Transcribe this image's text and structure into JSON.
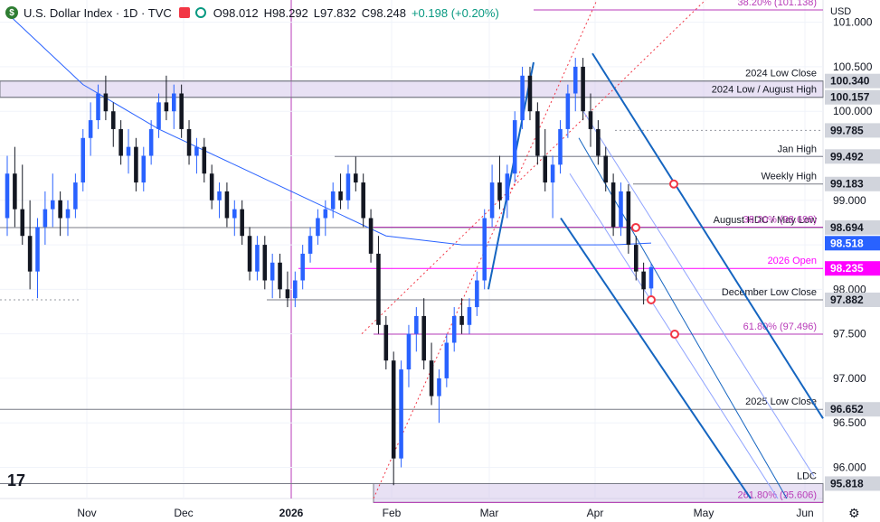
{
  "header": {
    "symbol": "U.S. Dollar Index · 1D · TVC",
    "o": "O98.012",
    "h": "H98.292",
    "l": "L97.832",
    "c": "C98.248",
    "change": "+0.198 (+0.20%)"
  },
  "currency": "USD",
  "colors": {
    "up": "#2962ff",
    "down": "#131722",
    "ma": "#2962ff",
    "channel": "#1565c0",
    "magenta": "#b83bb8",
    "pink": "#ff00ff",
    "gray_line": "#787b86",
    "red_dot": "#f23645"
  },
  "chart_data": {
    "type": "candlestick",
    "y_axis": {
      "min": 95.65,
      "max": 101.25,
      "ticks": [
        101.0,
        100.5,
        100.0,
        99.5,
        99.0,
        98.5,
        98.0,
        97.5,
        97.0,
        96.5,
        96.0
      ]
    },
    "x_axis": {
      "labels": [
        "Nov",
        "Dec",
        "2026",
        "Feb",
        "Mar",
        "Apr",
        "May",
        "Jun"
      ]
    },
    "levels": [
      {
        "value": 101.138,
        "label": "38.20% (101.138)",
        "kind": "fib"
      },
      {
        "value": 100.34,
        "label": "2024 Low Close",
        "tag": "100.340",
        "kind": "zone-top"
      },
      {
        "value": 100.157,
        "label": "2024 Low / August High",
        "tag": "100.157",
        "kind": "zone-bottom"
      },
      {
        "value": 99.785,
        "tag": "99.785",
        "kind": "dotted"
      },
      {
        "value": 99.492,
        "label": "Jan High",
        "tag": "99.492",
        "kind": "gray"
      },
      {
        "value": 99.183,
        "label": "Weekly High",
        "tag": "99.183",
        "kind": "gray"
      },
      {
        "value": 98.694,
        "label": "August HDC / May Low",
        "tag": "98.694",
        "kind": "gray"
      },
      {
        "value": 98.698,
        "label": "38.20% (98.698)",
        "kind": "fib"
      },
      {
        "value": 98.518,
        "tag": "98.518",
        "kind": "ma"
      },
      {
        "value": 98.235,
        "label": "2026 Open",
        "tag": "98.235",
        "kind": "open"
      },
      {
        "value": 97.882,
        "label": "December Low Close",
        "tag": "97.882",
        "kind": "gray"
      },
      {
        "value": 97.496,
        "label": "61.80% (97.496)",
        "kind": "fib"
      },
      {
        "value": 96.652,
        "label": "2025 Low Close",
        "tag": "96.652",
        "kind": "gray"
      },
      {
        "value": 95.818,
        "label": "LDC",
        "tag": "95.818",
        "kind": "zone-top"
      },
      {
        "value": 95.606,
        "label": "261.80% (95.606)",
        "kind": "fib"
      }
    ],
    "candles": [
      [
        98.8,
        99.5,
        98.6,
        99.3
      ],
      [
        99.3,
        99.6,
        98.7,
        98.9
      ],
      [
        98.9,
        99.4,
        98.5,
        98.6
      ],
      [
        98.6,
        99.0,
        98.0,
        98.2
      ],
      [
        98.2,
        98.8,
        97.9,
        98.7
      ],
      [
        98.7,
        99.1,
        98.5,
        98.9
      ],
      [
        98.9,
        99.3,
        98.7,
        99.0
      ],
      [
        99.0,
        99.1,
        98.6,
        98.8
      ],
      [
        98.8,
        99.0,
        98.6,
        98.9
      ],
      [
        98.9,
        99.3,
        98.8,
        99.2
      ],
      [
        99.2,
        99.8,
        99.1,
        99.7
      ],
      [
        99.7,
        100.1,
        99.5,
        99.9
      ],
      [
        99.9,
        100.3,
        99.8,
        100.2
      ],
      [
        100.2,
        100.4,
        99.9,
        100.0
      ],
      [
        100.0,
        100.1,
        99.6,
        99.8
      ],
      [
        99.8,
        99.9,
        99.4,
        99.5
      ],
      [
        99.5,
        99.8,
        99.3,
        99.6
      ],
      [
        99.6,
        99.7,
        99.1,
        99.2
      ],
      [
        99.2,
        99.6,
        99.1,
        99.5
      ],
      [
        99.5,
        99.9,
        99.4,
        99.8
      ],
      [
        99.8,
        100.2,
        99.7,
        100.1
      ],
      [
        100.1,
        100.4,
        99.9,
        100.0
      ],
      [
        100.0,
        100.3,
        99.8,
        100.2
      ],
      [
        100.2,
        100.3,
        99.7,
        99.8
      ],
      [
        99.8,
        99.9,
        99.4,
        99.5
      ],
      [
        99.5,
        99.7,
        99.3,
        99.6
      ],
      [
        99.6,
        99.7,
        99.2,
        99.3
      ],
      [
        99.3,
        99.4,
        98.9,
        99.0
      ],
      [
        99.0,
        99.2,
        98.8,
        99.1
      ],
      [
        99.1,
        99.2,
        98.7,
        98.8
      ],
      [
        98.8,
        99.0,
        98.6,
        98.9
      ],
      [
        98.9,
        99.0,
        98.5,
        98.6
      ],
      [
        98.6,
        98.7,
        98.1,
        98.2
      ],
      [
        98.2,
        98.6,
        98.1,
        98.5
      ],
      [
        98.5,
        98.6,
        98.0,
        98.1
      ],
      [
        98.1,
        98.4,
        97.9,
        98.3
      ],
      [
        98.3,
        98.4,
        97.9,
        98.0
      ],
      [
        98.0,
        98.2,
        97.8,
        97.9
      ],
      [
        97.9,
        98.2,
        97.8,
        98.1
      ],
      [
        98.1,
        98.5,
        98.0,
        98.4
      ],
      [
        98.4,
        98.7,
        98.3,
        98.6
      ],
      [
        98.6,
        98.9,
        98.5,
        98.8
      ],
      [
        98.8,
        99.0,
        98.6,
        98.9
      ],
      [
        98.9,
        99.2,
        98.8,
        99.1
      ],
      [
        99.1,
        99.3,
        98.9,
        99.0
      ],
      [
        99.0,
        99.4,
        98.9,
        99.3
      ],
      [
        99.3,
        99.49,
        99.1,
        99.2
      ],
      [
        99.2,
        99.3,
        98.7,
        98.8
      ],
      [
        98.8,
        98.9,
        98.3,
        98.4
      ],
      [
        98.4,
        98.6,
        97.5,
        97.6
      ],
      [
        97.6,
        97.7,
        97.1,
        97.2
      ],
      [
        97.2,
        97.3,
        95.8,
        96.1
      ],
      [
        96.1,
        97.2,
        96.0,
        97.1
      ],
      [
        97.1,
        97.6,
        96.9,
        97.5
      ],
      [
        97.5,
        97.8,
        97.3,
        97.7
      ],
      [
        97.7,
        97.9,
        97.1,
        97.2
      ],
      [
        97.2,
        97.4,
        96.7,
        96.8
      ],
      [
        96.8,
        97.1,
        96.5,
        97.0
      ],
      [
        97.0,
        97.5,
        96.9,
        97.4
      ],
      [
        97.4,
        97.8,
        97.3,
        97.7
      ],
      [
        97.7,
        97.9,
        97.5,
        97.6
      ],
      [
        97.6,
        97.9,
        97.5,
        97.8
      ],
      [
        97.8,
        98.2,
        97.7,
        98.1
      ],
      [
        98.1,
        98.9,
        98.0,
        98.8
      ],
      [
        98.8,
        99.4,
        98.7,
        99.2
      ],
      [
        99.2,
        99.5,
        98.9,
        99.0
      ],
      [
        99.0,
        99.4,
        98.8,
        99.3
      ],
      [
        99.3,
        100.0,
        99.2,
        99.9
      ],
      [
        99.9,
        100.5,
        99.8,
        100.4
      ],
      [
        100.4,
        100.5,
        99.9,
        100.0
      ],
      [
        100.0,
        100.1,
        99.4,
        99.5
      ],
      [
        99.5,
        99.8,
        99.1,
        99.2
      ],
      [
        99.2,
        99.5,
        98.8,
        99.4
      ],
      [
        99.4,
        99.9,
        99.3,
        99.8
      ],
      [
        99.8,
        100.3,
        99.7,
        100.2
      ],
      [
        100.2,
        100.6,
        100.0,
        100.5
      ],
      [
        100.5,
        100.6,
        99.9,
        100.0
      ],
      [
        100.0,
        100.2,
        99.6,
        99.8
      ],
      [
        99.8,
        99.9,
        99.4,
        99.5
      ],
      [
        99.5,
        99.6,
        99.1,
        99.2
      ],
      [
        99.2,
        99.3,
        98.6,
        98.7
      ],
      [
        98.7,
        99.2,
        98.6,
        99.1
      ],
      [
        99.1,
        99.18,
        98.4,
        98.5
      ],
      [
        98.5,
        98.6,
        98.1,
        98.2
      ],
      [
        98.2,
        98.3,
        97.83,
        98.0
      ],
      [
        98.01,
        98.29,
        97.83,
        98.25
      ]
    ],
    "moving_average": [
      [
        0,
        101.1
      ],
      [
        10,
        100.3
      ],
      [
        20,
        99.8
      ],
      [
        30,
        99.4
      ],
      [
        40,
        99.0
      ],
      [
        50,
        98.6
      ],
      [
        60,
        98.5
      ],
      [
        70,
        98.5
      ],
      [
        80,
        98.5
      ],
      [
        85,
        98.52
      ]
    ]
  }
}
